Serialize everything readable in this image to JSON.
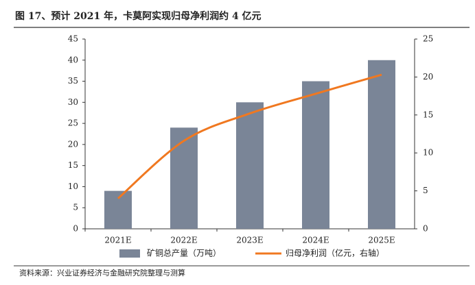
{
  "chart_data": {
    "type": "bar",
    "title": "图 17、预计 2021 年，卡莫阿实现归母净利润约 4 亿元",
    "categories": [
      "2021E",
      "2022E",
      "2023E",
      "2024E",
      "2025E"
    ],
    "series": [
      {
        "name": "矿铜总产量（万吨）",
        "type": "bar",
        "color": "#7a8597",
        "values": [
          9,
          24,
          30,
          35,
          40
        ]
      },
      {
        "name": "归母净利润（亿元，右轴）",
        "type": "line",
        "axis": "y2",
        "color": "#f07820",
        "values": [
          4,
          11.6,
          15.2,
          17.8,
          20.3
        ]
      }
    ],
    "ylim": [
      0,
      45
    ],
    "yticks": [
      0,
      5,
      10,
      15,
      20,
      25,
      30,
      35,
      40,
      45
    ],
    "y2lim": [
      0,
      25
    ],
    "y2ticks": [
      0,
      5,
      10,
      15,
      20,
      25
    ],
    "source": "资料来源：兴业证券经济与金融研究院整理与测算"
  }
}
